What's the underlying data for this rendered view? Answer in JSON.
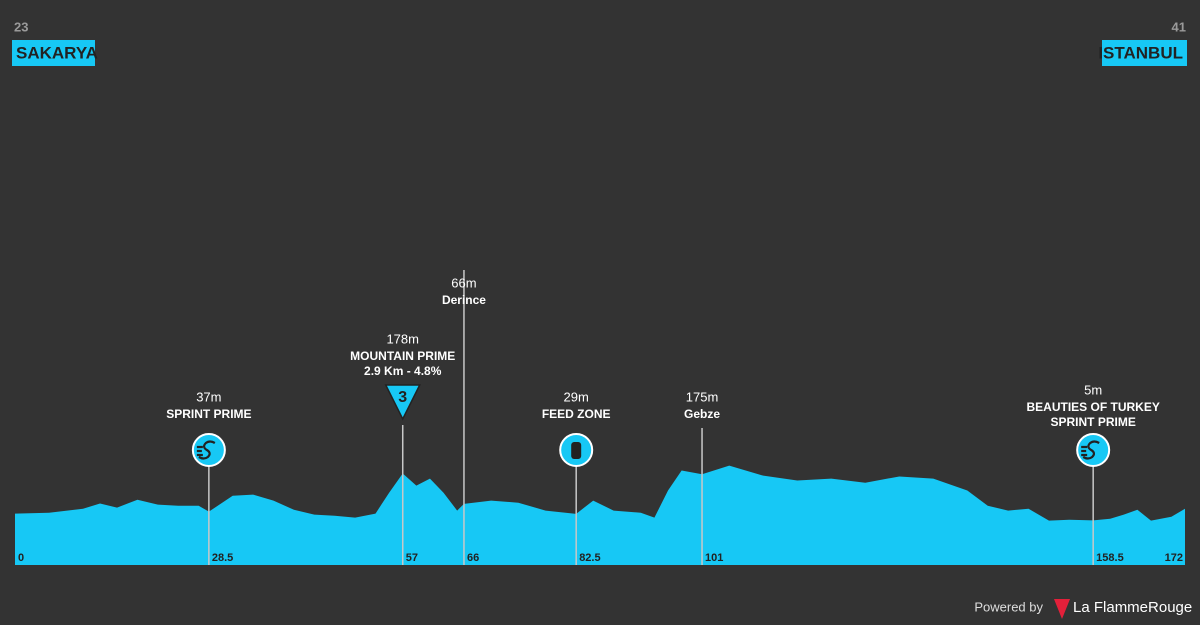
{
  "chart_data": {
    "type": "area",
    "color": "#17c8f5",
    "start": {
      "number": "23",
      "city": "SAKARYA"
    },
    "finish": {
      "number": "41",
      "city": "ISTANBUL"
    },
    "x": [
      0,
      5,
      10,
      12.5,
      15,
      18,
      21,
      24,
      27,
      28.5,
      32,
      35,
      38,
      41,
      44,
      47,
      50,
      53,
      55,
      57,
      59,
      61,
      63,
      65,
      66,
      70,
      74,
      78,
      82.5,
      85,
      88,
      92,
      94,
      96,
      98,
      101,
      105,
      110,
      115,
      120,
      125,
      130,
      135,
      140,
      143,
      146,
      149,
      152,
      155,
      158.5,
      161,
      163,
      165,
      167,
      170,
      172
    ],
    "values": [
      30,
      33,
      48,
      67,
      52,
      81,
      63,
      59,
      59,
      37,
      96,
      100,
      78,
      44,
      26,
      22,
      15,
      30,
      107,
      178,
      133,
      159,
      107,
      41,
      66,
      78,
      70,
      41,
      29,
      78,
      41,
      33,
      15,
      115,
      189,
      175,
      207,
      170,
      152,
      159,
      144,
      167,
      159,
      115,
      59,
      41,
      48,
      4,
      7,
      5,
      11,
      26,
      44,
      4,
      18,
      48
    ],
    "xlim": [
      0,
      172
    ],
    "ylim": [
      -160,
      1650
    ],
    "xticks": [
      0,
      28.5,
      57,
      66,
      82.5,
      101,
      158.5,
      172
    ],
    "markers": [
      {
        "elevation": "37m",
        "lines": [
          "SPRINT PRIME"
        ],
        "icon": "sprint"
      },
      {
        "elevation": "178m",
        "lines": [
          "MOUNTAIN PRIME",
          "2.9 Km - 4.8%"
        ],
        "icon": "climb",
        "category": "3"
      },
      {
        "elevation": "66m",
        "lines": [
          "Derince"
        ]
      },
      {
        "elevation": "29m",
        "lines": [
          "FEED ZONE"
        ],
        "icon": "feed"
      },
      {
        "elevation": "175m",
        "lines": [
          "Gebze"
        ]
      },
      {
        "elevation": "5m",
        "lines": [
          "BEAUTIES OF TURKEY",
          "SPRINT PRIME"
        ],
        "icon": "sprint"
      }
    ]
  },
  "footer": {
    "powered": "Powered by",
    "brand": "La FlammeRouge"
  }
}
